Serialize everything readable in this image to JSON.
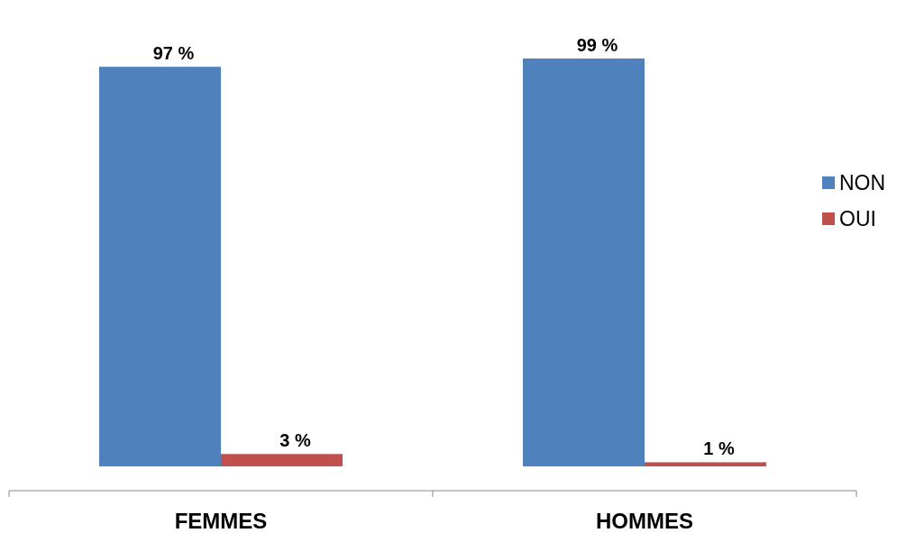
{
  "chart_data": {
    "type": "bar",
    "categories": [
      "FEMMES",
      "HOMMES"
    ],
    "series": [
      {
        "name": "NON",
        "color": "#4f81bd",
        "values": [
          97,
          99
        ],
        "value_labels": [
          "97 %",
          "99 %"
        ]
      },
      {
        "name": "OUI",
        "color": "#c0504d",
        "values": [
          3,
          1
        ],
        "value_labels": [
          "3 %",
          "1 %"
        ]
      }
    ],
    "legend": "right"
  }
}
